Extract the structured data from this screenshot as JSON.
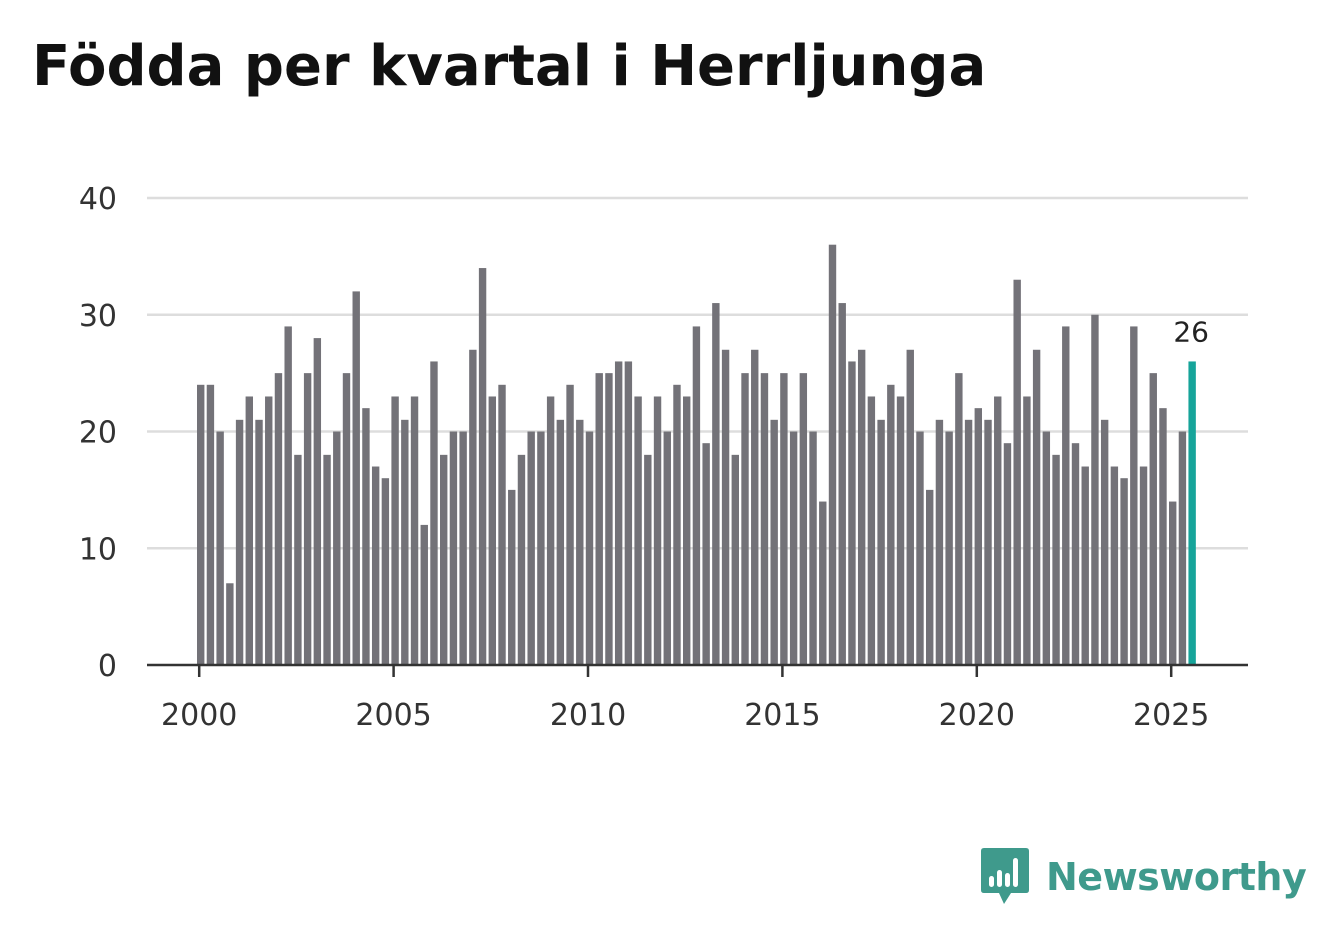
{
  "title": "Födda per kvartal i Herrljunga",
  "brand": {
    "name": "Newsworthy",
    "color": "#3f9a8c",
    "icon": "newsworthy-logo-icon"
  },
  "colors": {
    "bar": "#737278",
    "highlight": "#16a49a",
    "grid": "#dddddd",
    "axis": "#333333"
  },
  "chart_data": {
    "type": "bar",
    "title": "Födda per kvartal i Herrljunga",
    "xlabel": "",
    "ylabel": "",
    "ylim": [
      0,
      40
    ],
    "yticks": [
      "0",
      "10",
      "20",
      "30",
      "40"
    ],
    "xticks": [
      "2000",
      "2005",
      "2010",
      "2015",
      "2020",
      "2025"
    ],
    "first_year": 2000,
    "periods_per_year": 4,
    "grid": true,
    "highlight_last": true,
    "highlight_label": "26",
    "values": [
      24,
      24,
      20,
      7,
      21,
      23,
      21,
      23,
      25,
      29,
      18,
      25,
      28,
      18,
      20,
      25,
      32,
      22,
      17,
      16,
      23,
      21,
      23,
      12,
      26,
      18,
      20,
      20,
      27,
      34,
      23,
      24,
      15,
      18,
      20,
      20,
      23,
      21,
      24,
      21,
      20,
      25,
      25,
      26,
      26,
      23,
      18,
      23,
      20,
      24,
      23,
      29,
      19,
      31,
      27,
      18,
      25,
      27,
      25,
      21,
      25,
      20,
      25,
      20,
      14,
      36,
      31,
      26,
      27,
      23,
      21,
      24,
      23,
      27,
      20,
      15,
      21,
      20,
      25,
      21,
      22,
      21,
      23,
      19,
      33,
      23,
      27,
      20,
      18,
      29,
      19,
      17,
      30,
      21,
      17,
      16,
      29,
      17,
      25,
      22,
      14,
      20,
      26
    ]
  }
}
